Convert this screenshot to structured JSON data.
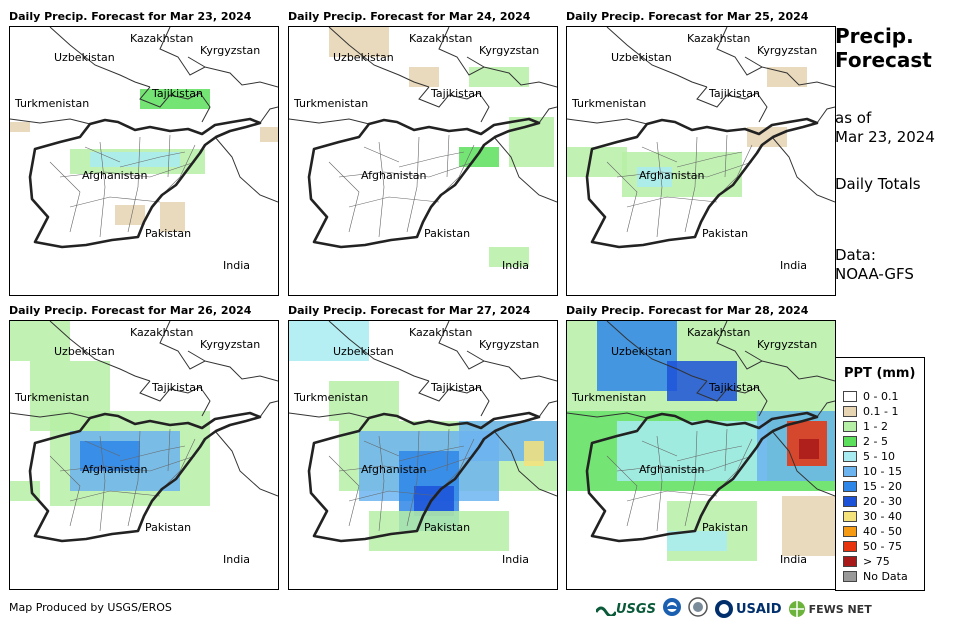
{
  "panels": [
    {
      "title": "Daily Precip. Forecast for Mar 23, 2024"
    },
    {
      "title": "Daily Precip. Forecast for Mar 24, 2024"
    },
    {
      "title": "Daily Precip. Forecast for Mar 25, 2024"
    },
    {
      "title": "Daily Precip. Forecast for Mar 26, 2024"
    },
    {
      "title": "Daily Precip. Forecast for Mar 27, 2024"
    },
    {
      "title": "Daily Precip. Forecast for Mar 28, 2024"
    }
  ],
  "countries": {
    "kazakhstan": "Kazakhstan",
    "uzbekistan": "Uzbekistan",
    "kyrgyzstan": "Kyrgyzstan",
    "tajikistan": "Tajikistan",
    "turkmenistan": "Turkmenistan",
    "afghanistan": "Afghanistan",
    "pakistan": "Pakistan",
    "india": "India"
  },
  "sidebar": {
    "title_line1": "Precip.",
    "title_line2": "Forecast",
    "asof_line1": "as of",
    "asof_line2": "Mar 23, 2024",
    "totals": "Daily Totals",
    "data_line1": "Data:",
    "data_line2": "NOAA-GFS"
  },
  "legend": {
    "title": "PPT (mm)",
    "items": [
      {
        "label": "0 - 0.1",
        "color": "#ffffff"
      },
      {
        "label": "0.1 - 1",
        "color": "#e6d4b2"
      },
      {
        "label": "1 - 2",
        "color": "#b6f0a6"
      },
      {
        "label": "2 - 5",
        "color": "#5ce05c"
      },
      {
        "label": "5 - 10",
        "color": "#a8ecf2"
      },
      {
        "label": "10 - 15",
        "color": "#6cb4f0"
      },
      {
        "label": "15 - 20",
        "color": "#2e86e8"
      },
      {
        "label": "20 - 30",
        "color": "#1c52d8"
      },
      {
        "label": "30 - 40",
        "color": "#f6e27a"
      },
      {
        "label": "40 - 50",
        "color": "#f59a12"
      },
      {
        "label": "50 - 75",
        "color": "#e8340e"
      },
      {
        "label": "> 75",
        "color": "#a81a1a"
      },
      {
        "label": "No Data",
        "color": "#999999"
      }
    ]
  },
  "credit": "Map Produced by USGS/EROS",
  "logos": {
    "usgs": "USGS",
    "usaid": "USAID",
    "fewsnet": "FEWS NET"
  }
}
